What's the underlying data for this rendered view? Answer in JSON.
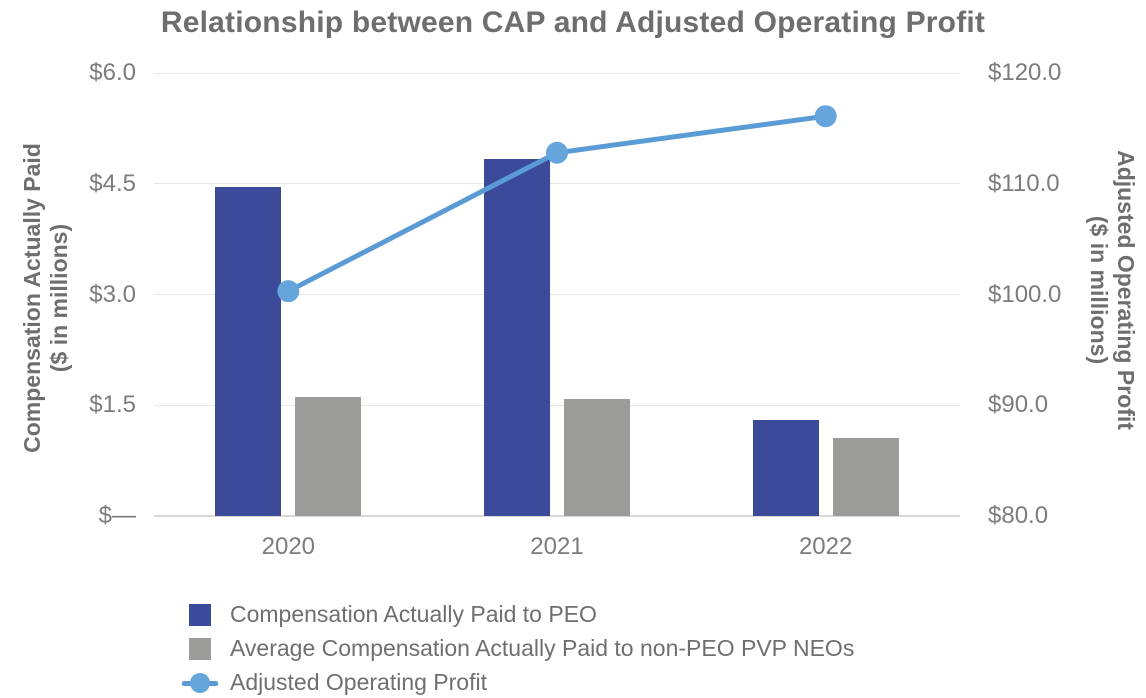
{
  "title": "Relationship between CAP and Adjusted Operating Profit",
  "chart_data": {
    "type": "bar",
    "combo": "bar+line",
    "title": "Relationship between CAP and Adjusted Operating Profit",
    "categories": [
      "2020",
      "2021",
      "2022"
    ],
    "series": [
      {
        "name": "Compensation Actually Paid to PEO",
        "type": "bar",
        "axis": "left",
        "color": "#3C4B99",
        "values": [
          4.45,
          4.83,
          1.3
        ]
      },
      {
        "name": "Average Compensation Actually Paid to non-PEO PVP NEOs",
        "type": "bar",
        "axis": "left",
        "color": "#9B9B9A",
        "values": [
          1.61,
          1.58,
          1.05
        ]
      },
      {
        "name": "Adjusted Operating Profit",
        "type": "line",
        "axis": "right",
        "color": "#5B9BD5",
        "marker_color": "#66A5DC",
        "values": [
          100.3,
          112.8,
          116.1
        ]
      }
    ],
    "left_axis": {
      "title_line1": "Compensation Actually Paid",
      "title_line2": "($ in millions)",
      "ticks": [
        "$6.0",
        "$4.5",
        "$3.0",
        "$1.5",
        "$—"
      ],
      "min": 0,
      "max": 6
    },
    "right_axis": {
      "title_line1": "Adjusted Operating Profit",
      "title_line2": "($ in millions)",
      "ticks": [
        "$120.0",
        "$110.0",
        "$100.0",
        "$90.0",
        "$80.0"
      ],
      "min": 80,
      "max": 120
    },
    "grid": true,
    "legend_position": "bottom-left"
  }
}
